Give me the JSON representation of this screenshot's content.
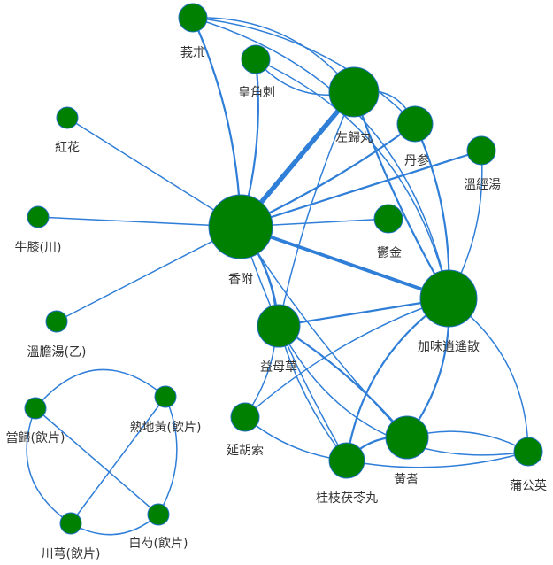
{
  "graph": {
    "colors": {
      "node": "#008000",
      "node_border": "#1f6fc4",
      "edge": "#2f7ed8",
      "label": "#333333"
    },
    "nodes": [
      {
        "id": "zhu",
        "label": "莪朮"
      },
      {
        "id": "zao",
        "label": "皇角刺"
      },
      {
        "id": "zuo",
        "label": "左歸丸"
      },
      {
        "id": "dan",
        "label": "丹参"
      },
      {
        "id": "wen",
        "label": "溫經湯"
      },
      {
        "id": "hong",
        "label": "紅花"
      },
      {
        "id": "niu",
        "label": "牛膝(川)"
      },
      {
        "id": "xiang",
        "label": "香附"
      },
      {
        "id": "yu",
        "label": "鬱金"
      },
      {
        "id": "jia",
        "label": "加味逍遙散"
      },
      {
        "id": "wendan",
        "label": "溫膽湯(乙)"
      },
      {
        "id": "yi",
        "label": "益母草"
      },
      {
        "id": "yan",
        "label": "延胡索"
      },
      {
        "id": "huang",
        "label": "黃耆"
      },
      {
        "id": "pu",
        "label": "蒲公英"
      },
      {
        "id": "gui",
        "label": "桂枝茯苓丸"
      },
      {
        "id": "dang",
        "label": "當歸(飲片)"
      },
      {
        "id": "shu",
        "label": "熟地黃(飲片)"
      },
      {
        "id": "chuan",
        "label": "川芎(飲片)"
      },
      {
        "id": "bai",
        "label": "白芍(飲片)"
      }
    ],
    "edges": [
      {
        "source": "xiang",
        "target": "zuo",
        "weight": 5
      },
      {
        "source": "xiang",
        "target": "jia",
        "weight": 4
      },
      {
        "source": "xiang",
        "target": "zhu",
        "weight": 2
      },
      {
        "source": "xiang",
        "target": "zao",
        "weight": 2
      },
      {
        "source": "xiang",
        "target": "dan",
        "weight": 2
      },
      {
        "source": "xiang",
        "target": "wen",
        "weight": 2
      },
      {
        "source": "xiang",
        "target": "hong",
        "weight": 1
      },
      {
        "source": "xiang",
        "target": "niu",
        "weight": 1
      },
      {
        "source": "xiang",
        "target": "wendan",
        "weight": 1
      },
      {
        "source": "xiang",
        "target": "yu",
        "weight": 1
      },
      {
        "source": "xiang",
        "target": "yi",
        "weight": 2
      },
      {
        "source": "xiang",
        "target": "gui",
        "weight": 1
      },
      {
        "source": "xiang",
        "target": "huang",
        "weight": 1
      },
      {
        "source": "xiang",
        "target": "yan",
        "weight": 1
      },
      {
        "source": "zuo",
        "target": "jia",
        "weight": 2
      },
      {
        "source": "zuo",
        "target": "zhu",
        "weight": 1
      },
      {
        "source": "zuo",
        "target": "zao",
        "weight": 1
      },
      {
        "source": "zuo",
        "target": "dan",
        "weight": 1
      },
      {
        "source": "zuo",
        "target": "yi",
        "weight": 1
      },
      {
        "source": "zhu",
        "target": "dan",
        "weight": 1
      },
      {
        "source": "zhu",
        "target": "jia",
        "weight": 1
      },
      {
        "source": "zao",
        "target": "jia",
        "weight": 1
      },
      {
        "source": "dan",
        "target": "jia",
        "weight": 2
      },
      {
        "source": "wen",
        "target": "jia",
        "weight": 1
      },
      {
        "source": "jia",
        "target": "yi",
        "weight": 2
      },
      {
        "source": "jia",
        "target": "huang",
        "weight": 2
      },
      {
        "source": "jia",
        "target": "gui",
        "weight": 2
      },
      {
        "source": "jia",
        "target": "pu",
        "weight": 1
      },
      {
        "source": "jia",
        "target": "yan",
        "weight": 1
      },
      {
        "source": "yi",
        "target": "huang",
        "weight": 2
      },
      {
        "source": "yi",
        "target": "gui",
        "weight": 1
      },
      {
        "source": "yi",
        "target": "pu",
        "weight": 1
      },
      {
        "source": "yan",
        "target": "gui",
        "weight": 1
      },
      {
        "source": "huang",
        "target": "gui",
        "weight": 2
      },
      {
        "source": "huang",
        "target": "pu",
        "weight": 1
      },
      {
        "source": "gui",
        "target": "pu",
        "weight": 1
      },
      {
        "source": "dang",
        "target": "shu",
        "weight": 1
      },
      {
        "source": "dang",
        "target": "chuan",
        "weight": 1
      },
      {
        "source": "dang",
        "target": "bai",
        "weight": 1
      },
      {
        "source": "shu",
        "target": "chuan",
        "weight": 1
      },
      {
        "source": "shu",
        "target": "bai",
        "weight": 1
      },
      {
        "source": "chuan",
        "target": "bai",
        "weight": 1
      }
    ]
  }
}
